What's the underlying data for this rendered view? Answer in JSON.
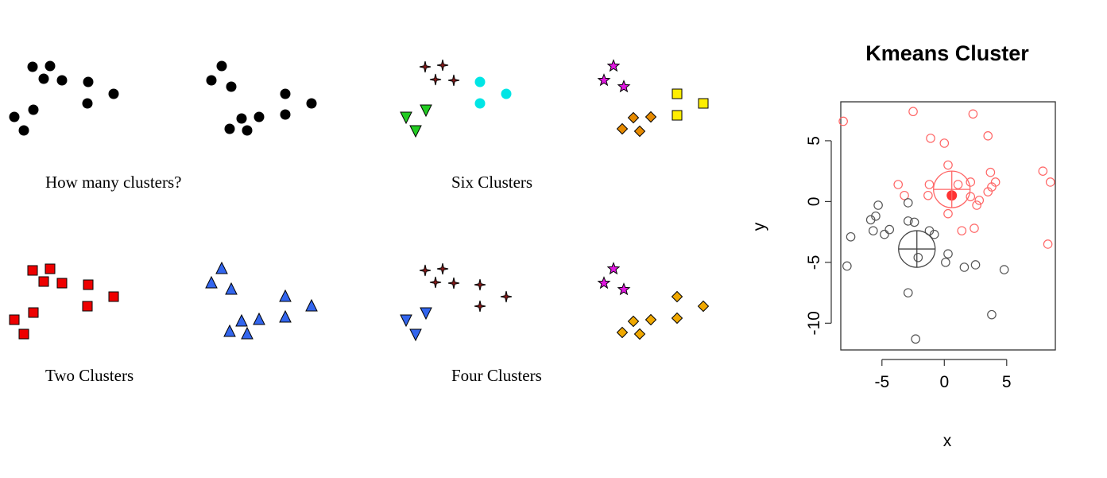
{
  "panels": [
    {
      "caption": "How many clusters?"
    },
    {
      "caption": "Six Clusters"
    },
    {
      "caption": "Two Clusters"
    },
    {
      "caption": "Four Clusters"
    }
  ],
  "kmeans": {
    "title": "Kmeans Cluster",
    "xlabel": "x",
    "ylabel": "y",
    "x_ticks": [
      "-5",
      "0",
      "5"
    ],
    "y_ticks": [
      "5",
      "0",
      "-5",
      "-10"
    ]
  },
  "chart_data": [
    {
      "type": "scatter",
      "title": "How many clusters?",
      "series": [
        {
          "color": "#000000",
          "marker": "circle",
          "points": [
            [
              41,
              84
            ],
            [
              63,
              83
            ],
            [
              55,
              99
            ],
            [
              78,
              101
            ],
            [
              111,
              103
            ],
            [
              143,
              118
            ],
            [
              110,
              130
            ],
            [
              42,
              138
            ],
            [
              18,
              147
            ],
            [
              30,
              164
            ],
            [
              279,
              83
            ],
            [
              266,
              101
            ],
            [
              291,
              109
            ],
            [
              359,
              118
            ],
            [
              392,
              130
            ],
            [
              359,
              144
            ],
            [
              304,
              149
            ],
            [
              326,
              147
            ],
            [
              289,
              162
            ],
            [
              311,
              164
            ]
          ]
        }
      ]
    },
    {
      "type": "scatter",
      "title": "Six Clusters",
      "series": [
        {
          "color": "#8b1a1a",
          "marker": "star4",
          "points": [
            [
              535,
              84
            ],
            [
              557,
              82
            ],
            [
              548,
              100
            ],
            [
              571,
              101
            ]
          ]
        },
        {
          "color": "#00e5e5",
          "marker": "circle",
          "points": [
            [
              604,
              103
            ],
            [
              637,
              118
            ],
            [
              604,
              130
            ]
          ]
        },
        {
          "color": "#22cc22",
          "marker": "triangle-down",
          "points": [
            [
              536,
              138
            ],
            [
              511,
              147
            ],
            [
              523,
              164
            ]
          ]
        },
        {
          "color": "#e018e0",
          "marker": "star",
          "points": [
            [
              772,
              83
            ],
            [
              760,
              101
            ],
            [
              785,
              109
            ]
          ]
        },
        {
          "color": "#e68a00",
          "marker": "diamond",
          "points": [
            [
              797,
              148
            ],
            [
              819,
              147
            ],
            [
              783,
              162
            ],
            [
              805,
              165
            ]
          ]
        },
        {
          "color": "#ffee00",
          "marker": "square",
          "points": [
            [
              852,
              118
            ],
            [
              885,
              130
            ],
            [
              852,
              145
            ]
          ]
        }
      ]
    },
    {
      "type": "scatter",
      "title": "Two Clusters",
      "series": [
        {
          "color": "#ee0000",
          "marker": "square",
          "points": [
            [
              41,
              340
            ],
            [
              63,
              338
            ],
            [
              55,
              354
            ],
            [
              78,
              356
            ],
            [
              111,
              358
            ],
            [
              143,
              373
            ],
            [
              110,
              385
            ],
            [
              42,
              393
            ],
            [
              18,
              402
            ],
            [
              30,
              420
            ]
          ]
        },
        {
          "color": "#3366ee",
          "marker": "triangle",
          "points": [
            [
              279,
              338
            ],
            [
              266,
              356
            ],
            [
              291,
              364
            ],
            [
              359,
              373
            ],
            [
              392,
              385
            ],
            [
              359,
              399
            ],
            [
              304,
              404
            ],
            [
              326,
              402
            ],
            [
              289,
              417
            ],
            [
              311,
              420
            ]
          ]
        }
      ]
    },
    {
      "type": "scatter",
      "title": "Four Clusters",
      "series": [
        {
          "color": "#8b1a1a",
          "marker": "star4",
          "points": [
            [
              535,
              340
            ],
            [
              557,
              338
            ],
            [
              548,
              355
            ],
            [
              571,
              356
            ],
            [
              604,
              358
            ],
            [
              637,
              373
            ],
            [
              604,
              385
            ]
          ]
        },
        {
          "color": "#3366ee",
          "marker": "triangle-down",
          "points": [
            [
              536,
              393
            ],
            [
              511,
              402
            ],
            [
              523,
              420
            ]
          ]
        },
        {
          "color": "#e018e0",
          "marker": "star",
          "points": [
            [
              772,
              338
            ],
            [
              760,
              356
            ],
            [
              785,
              364
            ]
          ]
        },
        {
          "color": "#f0a800",
          "marker": "diamond",
          "points": [
            [
              852,
              373
            ],
            [
              885,
              385
            ],
            [
              852,
              400
            ],
            [
              797,
              404
            ],
            [
              819,
              402
            ],
            [
              783,
              418
            ],
            [
              805,
              420
            ]
          ]
        }
      ]
    },
    {
      "type": "scatter",
      "title": "Kmeans Cluster",
      "xlabel": "x",
      "ylabel": "y",
      "xlim": [
        -8.3,
        8.9
      ],
      "ylim": [
        -12.2,
        8.2
      ],
      "x_ticks": [
        -5,
        0,
        5
      ],
      "y_ticks": [
        -10,
        -5,
        0,
        5
      ],
      "grid": false,
      "series": [
        {
          "color": "#ff6666",
          "marker": "circle-open",
          "points": [
            [
              -8.1,
              6.6
            ],
            [
              -2.5,
              7.4
            ],
            [
              2.3,
              7.2
            ],
            [
              -1.1,
              5.2
            ],
            [
              0,
              4.8
            ],
            [
              3.5,
              5.4
            ],
            [
              0.3,
              3
            ],
            [
              -3.7,
              1.4
            ],
            [
              -3.2,
              0.5
            ],
            [
              -1.2,
              1.4
            ],
            [
              -1.3,
              0.5
            ],
            [
              1.1,
              1.4
            ],
            [
              2.1,
              1.6
            ],
            [
              3.7,
              2.4
            ],
            [
              4.1,
              1.6
            ],
            [
              3.8,
              1.2
            ],
            [
              3.5,
              0.8
            ],
            [
              2.1,
              0.4
            ],
            [
              2.8,
              0.1
            ],
            [
              2.6,
              -0.3
            ],
            [
              0.3,
              -1
            ],
            [
              1.4,
              -2.4
            ],
            [
              2.4,
              -2.2
            ],
            [
              7.9,
              2.5
            ],
            [
              8.5,
              1.6
            ],
            [
              8.3,
              -3.5
            ]
          ]
        },
        {
          "color": "#555555",
          "marker": "circle-open",
          "points": [
            [
              -5.3,
              -0.3
            ],
            [
              -2.9,
              -0.1
            ],
            [
              -5.5,
              -1.2
            ],
            [
              -5.9,
              -1.5
            ],
            [
              -2.9,
              -1.6
            ],
            [
              -2.4,
              -1.7
            ],
            [
              -4.4,
              -2.3
            ],
            [
              -5.7,
              -2.4
            ],
            [
              -4.8,
              -2.7
            ],
            [
              -7.5,
              -2.9
            ],
            [
              -1.2,
              -2.4
            ],
            [
              -0.8,
              -2.7
            ],
            [
              -2.1,
              -4.6
            ],
            [
              0.3,
              -4.3
            ],
            [
              -7.8,
              -5.3
            ],
            [
              0.1,
              -5
            ],
            [
              1.6,
              -5.4
            ],
            [
              2.5,
              -5.2
            ],
            [
              4.8,
              -5.6
            ],
            [
              -2.9,
              -7.5
            ],
            [
              3.8,
              -9.3
            ],
            [
              -2.3,
              -11.3
            ]
          ]
        }
      ],
      "centers": [
        {
          "color": "#ff3333",
          "x": 0.6,
          "y": 0.5,
          "filled": true
        },
        {
          "color": "#ff6666",
          "x": 0.6,
          "y": 1.0,
          "crosshair": true
        },
        {
          "color": "#444444",
          "x": -2.2,
          "y": -3.9,
          "crosshair": true
        }
      ]
    }
  ]
}
